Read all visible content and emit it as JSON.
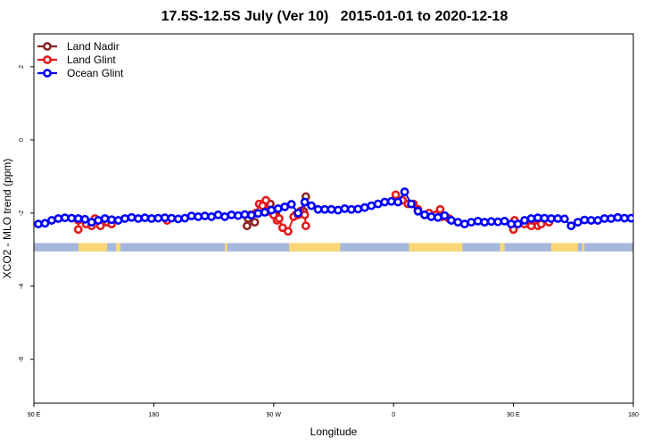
{
  "chart_data": {
    "type": "line",
    "title": "17.5S-12.5S July (Ver 10)   2015-01-01 to 2020-12-18",
    "xlabel": "Longitude",
    "ylabel": "XCO2 - MLO trend (ppm)",
    "xlim": [
      -90,
      180
    ],
    "ylim": [
      -7.2,
      2.9
    ],
    "x_ticks": [
      {
        "value": -90,
        "label": "90 E"
      },
      {
        "value": -36,
        "label": "180"
      },
      {
        "value": 18,
        "label": "90 W"
      },
      {
        "value": 72,
        "label": "0"
      },
      {
        "value": 126,
        "label": "90 E"
      },
      {
        "value": 180,
        "label": "180"
      }
    ],
    "y_ticks": [
      {
        "value": 2,
        "label": "2"
      },
      {
        "value": 0,
        "label": "0"
      },
      {
        "value": -2,
        "label": "-2"
      },
      {
        "value": -4,
        "label": "-4"
      },
      {
        "value": -6,
        "label": "-6"
      }
    ],
    "grid": false,
    "legend_position": "top-left",
    "land_mask": {
      "y_range": [
        -3.05,
        -2.82
      ],
      "ocean_color": "#a6b7dc",
      "land_color": "#fad775",
      "land_x_ranges": [
        [
          -70,
          -57
        ],
        [
          -53,
          -51
        ],
        [
          -4,
          -3
        ],
        [
          25,
          48
        ],
        [
          79,
          103
        ],
        [
          120,
          122
        ],
        [
          143,
          155
        ],
        [
          157,
          158
        ]
      ]
    },
    "series": [
      {
        "name": "Land Nadir",
        "color": "#8b2323",
        "x": [
          6,
          6.5,
          7.5,
          9.5,
          16,
          16.5,
          17.5,
          19,
          28,
          31.5,
          32.5
        ],
        "y": [
          -2.35,
          -2.15,
          -2.05,
          -2.25,
          -1.95,
          -1.75,
          -1.95,
          -2.05,
          -2.05,
          -1.95,
          -1.55
        ]
      },
      {
        "name": "Land Glint",
        "color": "#e61a1a",
        "x": [
          -70,
          -70,
          -66.5,
          -64,
          -62.5,
          -60,
          -57,
          -55,
          -30,
          10,
          11.5,
          13,
          14.5,
          15.5,
          18,
          19.5,
          20.5,
          22,
          24.5,
          27,
          29,
          30,
          30.5,
          32,
          32.5,
          73,
          76,
          78.5,
          81,
          83,
          86,
          88,
          91,
          93,
          94,
          97,
          126,
          126.5,
          131,
          134,
          134.5,
          137,
          138.5,
          142
        ],
        "y": [
          -2.45,
          -2.2,
          -2.3,
          -2.35,
          -2.15,
          -2.35,
          -2.25,
          -2.3,
          -2.2,
          -2.0,
          -1.75,
          -1.8,
          -1.65,
          -1.95,
          -2.05,
          -2.2,
          -2.15,
          -2.4,
          -2.5,
          -2.1,
          -2.05,
          -1.95,
          -2.0,
          -2.05,
          -2.35,
          -1.5,
          -1.65,
          -1.75,
          -1.75,
          -1.9,
          -2.05,
          -2.0,
          -2.05,
          -1.9,
          -2.1,
          -2.15,
          -2.45,
          -2.2,
          -2.3,
          -2.35,
          -2.2,
          -2.35,
          -2.3,
          -2.25
        ]
      },
      {
        "name": "Ocean Glint",
        "color": "#0000ff",
        "x": [
          -88,
          -85,
          -82,
          -79,
          -76,
          -73,
          -70,
          -67,
          -64,
          -61,
          -58,
          -55,
          -52,
          -49,
          -46,
          -43,
          -40,
          -37,
          -34,
          -31,
          -28,
          -25,
          -22,
          -19,
          -16,
          -13,
          -10,
          -7,
          -4,
          -1,
          2,
          5,
          8,
          11,
          14,
          17,
          20,
          23,
          26,
          29,
          32,
          35,
          38,
          41,
          44,
          47,
          50,
          53,
          56,
          59,
          62,
          65,
          68,
          71,
          74,
          77,
          80,
          83,
          86,
          89,
          92,
          95,
          98,
          101,
          104,
          107,
          110,
          113,
          116,
          119,
          122,
          125,
          128,
          131,
          134,
          137,
          140,
          143,
          146,
          149,
          152,
          155,
          158,
          161,
          164,
          167,
          170,
          173,
          176,
          179
        ],
        "y": [
          -2.3,
          -2.28,
          -2.2,
          -2.15,
          -2.13,
          -2.14,
          -2.15,
          -2.17,
          -2.25,
          -2.2,
          -2.15,
          -2.18,
          -2.2,
          -2.15,
          -2.12,
          -2.15,
          -2.13,
          -2.15,
          -2.14,
          -2.13,
          -2.14,
          -2.16,
          -2.14,
          -2.08,
          -2.1,
          -2.08,
          -2.1,
          -2.05,
          -2.1,
          -2.05,
          -2.07,
          -2.04,
          -2.06,
          -2.01,
          -1.98,
          -1.92,
          -1.88,
          -1.83,
          -1.76,
          -2.0,
          -1.7,
          -1.8,
          -1.9,
          -1.9,
          -1.9,
          -1.92,
          -1.88,
          -1.9,
          -1.89,
          -1.85,
          -1.8,
          -1.75,
          -1.7,
          -1.68,
          -1.7,
          -1.42,
          -1.75,
          -1.95,
          -2.05,
          -2.1,
          -2.12,
          -2.07,
          -2.2,
          -2.25,
          -2.3,
          -2.25,
          -2.22,
          -2.25,
          -2.23,
          -2.24,
          -2.22,
          -2.3,
          -2.3,
          -2.2,
          -2.15,
          -2.13,
          -2.14,
          -2.15,
          -2.15,
          -2.16,
          -2.35,
          -2.25,
          -2.19,
          -2.2,
          -2.2,
          -2.15,
          -2.15,
          -2.12,
          -2.14,
          -2.14
        ]
      }
    ]
  }
}
